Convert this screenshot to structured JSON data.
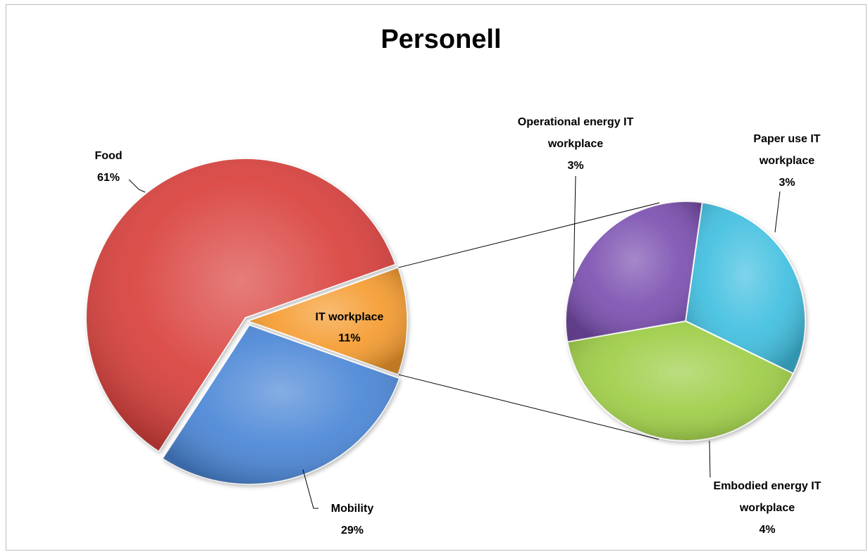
{
  "chart_data": {
    "type": "pie",
    "subtype": "pie-of-pie",
    "title": "Personell",
    "primary": {
      "slices": [
        {
          "label": "Food",
          "value": 61,
          "value_label": "61%",
          "color": "#d9403c"
        },
        {
          "label": "IT workplace",
          "value": 11,
          "value_label": "11%",
          "color": "#f59b2e"
        },
        {
          "label": "Mobility",
          "value": 29,
          "value_label": "29%",
          "color": "#4a86d6"
        }
      ]
    },
    "secondary": {
      "breakdown_of": "IT workplace",
      "slices": [
        {
          "label_lines": [
            "Paper use IT",
            "workplace"
          ],
          "value": 3,
          "value_label": "3%",
          "color": "#40bfe0"
        },
        {
          "label_lines": [
            "Embodied energy IT",
            "workplace"
          ],
          "value": 4,
          "value_label": "4%",
          "color": "#9dcd45"
        },
        {
          "label_lines": [
            "Operational energy IT",
            "workplace"
          ],
          "value": 3,
          "value_label": "3%",
          "color": "#7b4fb0"
        }
      ]
    },
    "legend": "none"
  }
}
